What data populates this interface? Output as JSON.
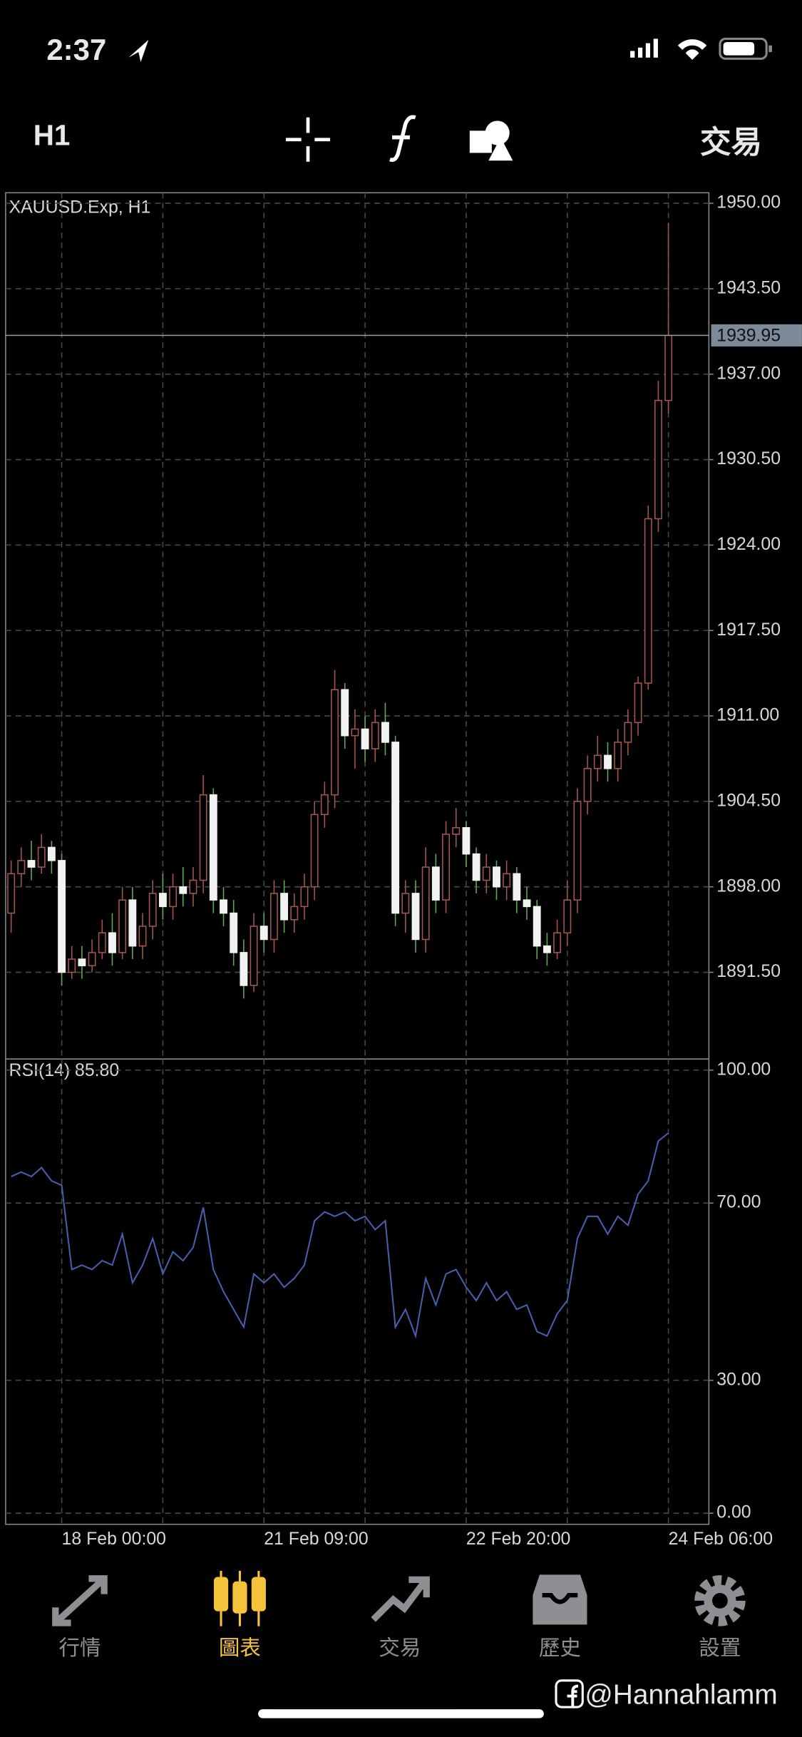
{
  "status_bar": {
    "time": "2:37"
  },
  "toolbar": {
    "timeframe": "H1",
    "trade": "交易"
  },
  "chart_data": [
    {
      "type": "candlestick",
      "title": "XAUUSD.Exp, H1",
      "open": [
        1896,
        1899,
        1900,
        1899.5,
        1901,
        1900,
        1891.5,
        1892.5,
        1892,
        1893,
        1894.5,
        1893,
        1897,
        1893.5,
        1895,
        1897.5,
        1896.5,
        1898,
        1897.5,
        1898.5,
        1905,
        1897,
        1896,
        1893,
        1890.5,
        1895,
        1894,
        1897.5,
        1895.5,
        1896.5,
        1898,
        1903.5,
        1905,
        1913,
        1909.5,
        1910,
        1908.5,
        1910.5,
        1909,
        1896,
        1897.5,
        1894,
        1899.5,
        1897,
        1902,
        1902.5,
        1900.5,
        1898.5,
        1899.5,
        1898,
        1899,
        1897,
        1896.5,
        1893.5,
        1893,
        1894.5,
        1897,
        1904.5,
        1907,
        1908,
        1907,
        1909,
        1910.5,
        1913.5,
        1926,
        1935
      ],
      "high": [
        1900,
        1901,
        1901.5,
        1902,
        1901.5,
        1900.5,
        1893.5,
        1893.5,
        1894,
        1895.5,
        1896,
        1898,
        1898,
        1896,
        1898.5,
        1899,
        1899,
        1899.5,
        1899.5,
        1906.5,
        1905.5,
        1898,
        1897,
        1894,
        1896,
        1896,
        1898.5,
        1898.5,
        1897.5,
        1899,
        1904.5,
        1906,
        1914.5,
        1913.5,
        1911.5,
        1911,
        1911.5,
        1912,
        1909.5,
        1898.5,
        1898.5,
        1901,
        1900.5,
        1903,
        1904,
        1903,
        1901,
        1900.5,
        1900,
        1900,
        1899.5,
        1898,
        1897,
        1894.5,
        1895.5,
        1898.5,
        1905.5,
        1908,
        1909.5,
        1909,
        1910,
        1911.5,
        1914,
        1927,
        1936.5,
        1948.5
      ],
      "low": [
        1894.5,
        1898,
        1898.5,
        1899,
        1899,
        1890.5,
        1891,
        1891,
        1891.5,
        1892.5,
        1892,
        1892.5,
        1892.5,
        1892.5,
        1894,
        1895.5,
        1895.5,
        1896.5,
        1896.5,
        1897.5,
        1896,
        1895,
        1892,
        1889.5,
        1890,
        1893,
        1893,
        1894.5,
        1894.5,
        1895.5,
        1897,
        1902.5,
        1904,
        1908.5,
        1907,
        1907.5,
        1907.5,
        1908,
        1895,
        1894.5,
        1893,
        1893,
        1896,
        1896,
        1901,
        1899.5,
        1897.5,
        1897.5,
        1897,
        1897,
        1896,
        1895.5,
        1892.5,
        1892,
        1892.5,
        1893.5,
        1896,
        1903.5,
        1906,
        1906,
        1906,
        1908,
        1909.5,
        1913,
        1925,
        1934
      ],
      "close": [
        1899,
        1900,
        1899.5,
        1901,
        1900,
        1891.5,
        1892.5,
        1892,
        1893,
        1894.5,
        1893,
        1897,
        1893.5,
        1895,
        1897.5,
        1896.5,
        1898,
        1897.5,
        1898.5,
        1905,
        1897,
        1896,
        1893,
        1890.5,
        1895,
        1894,
        1897.5,
        1895.5,
        1896.5,
        1898,
        1903.5,
        1905,
        1913,
        1909.5,
        1910,
        1908.5,
        1910.5,
        1909,
        1896,
        1897.5,
        1894,
        1899.5,
        1897,
        1902,
        1902.5,
        1900.5,
        1898.5,
        1899.5,
        1898,
        1899,
        1897,
        1896.5,
        1893.5,
        1893,
        1894.5,
        1897,
        1904.5,
        1907,
        1908,
        1907,
        1909,
        1910.5,
        1913.5,
        1926,
        1935,
        1939.95
      ],
      "up_color": "#a3574f",
      "down_color": "#f2f2f2",
      "down_wick_color": "#5fae57",
      "ylim": [
        1884.9,
        1950.8
      ],
      "yticks": [
        {
          "value": 1950,
          "label": "1950.00"
        },
        {
          "value": 1943.5,
          "label": "1943.50"
        },
        {
          "value": 1937,
          "label": "1937.00"
        },
        {
          "value": 1930.5,
          "label": "1930.50"
        },
        {
          "value": 1924,
          "label": "1924.00"
        },
        {
          "value": 1917.5,
          "label": "1917.50"
        },
        {
          "value": 1911,
          "label": "1911.00"
        },
        {
          "value": 1904.5,
          "label": "1904.50"
        },
        {
          "value": 1898,
          "label": "1898.00"
        },
        {
          "value": 1891.5,
          "label": "1891.50"
        }
      ],
      "grid": true
    },
    {
      "type": "line",
      "title": "RSI(14) 85.80",
      "categories": [
        null,
        null,
        null,
        null,
        null,
        "18 Feb 00:00",
        null,
        null,
        null,
        null,
        null,
        null,
        null,
        null,
        null,
        null,
        null,
        null,
        null,
        null,
        null,
        null,
        null,
        null,
        null,
        "21 Feb 09:00",
        null,
        null,
        null,
        null,
        null,
        null,
        null,
        null,
        null,
        null,
        null,
        null,
        null,
        null,
        null,
        null,
        null,
        null,
        null,
        "22 Feb 20:00",
        null,
        null,
        null,
        null,
        null,
        null,
        null,
        null,
        null,
        null,
        null,
        null,
        null,
        null,
        null,
        null,
        null,
        null,
        null,
        "24 Feb 06:00"
      ],
      "values": [
        76,
        77,
        76,
        78,
        75,
        74,
        55,
        56,
        55,
        57,
        56,
        63,
        52,
        56,
        62,
        54,
        59,
        57,
        60,
        69,
        55,
        50,
        46,
        42,
        54,
        52,
        54,
        51,
        53,
        56,
        66,
        68,
        67,
        68,
        66,
        67,
        64,
        66,
        42,
        46,
        40,
        53,
        47,
        54,
        55,
        51,
        48,
        52,
        48,
        50,
        46,
        47,
        41,
        40,
        45,
        48,
        62,
        67,
        67,
        63,
        67,
        65,
        72,
        75,
        84,
        85.8
      ],
      "color": "#4a5fb0",
      "ylim": [
        -2.5,
        102.5
      ],
      "yticks": [
        {
          "value": 100,
          "label": "100.00"
        },
        {
          "value": 70,
          "label": "70.00"
        },
        {
          "value": 30,
          "label": "30.00"
        },
        {
          "value": 0,
          "label": "0.00"
        }
      ],
      "grid": true
    }
  ],
  "tab_bar": {
    "tabs": [
      "行情",
      "圖表",
      "交易",
      "歷史",
      "設置"
    ],
    "active": 1,
    "active_color": "#f5c33b",
    "color": "#8e8e93"
  },
  "watermark": "@Hannahlamm"
}
